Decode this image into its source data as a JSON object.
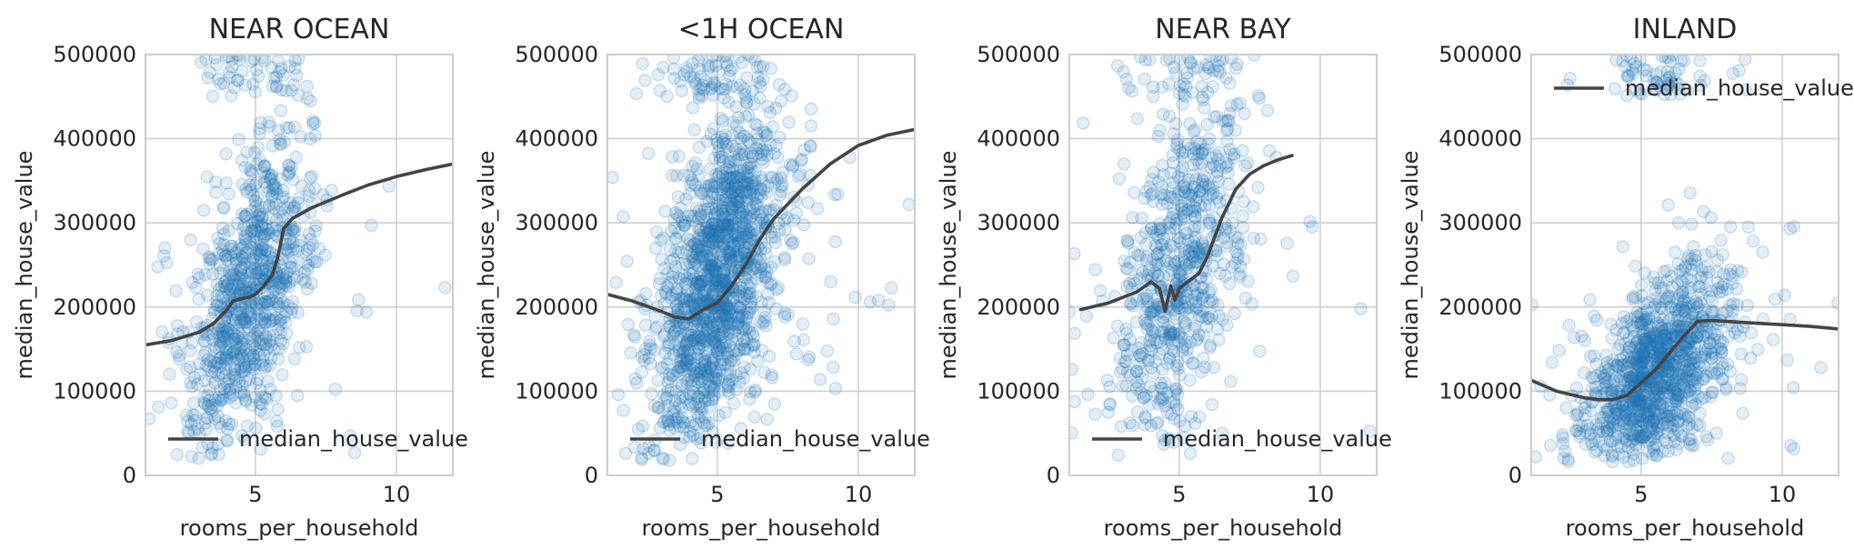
{
  "chart_data": [
    {
      "type": "scatter",
      "title": "NEAR OCEAN",
      "xlabel": "rooms_per_household",
      "ylabel": "median_house_value",
      "xlim": [
        1.1,
        12.0
      ],
      "ylim": [
        0,
        500000
      ],
      "xticks": [
        5,
        10
      ],
      "yticks": [
        0,
        100000,
        200000,
        300000,
        400000,
        500000
      ],
      "xtick_labels": [
        "5",
        "10"
      ],
      "ytick_labels": [
        "0",
        "100000",
        "200000",
        "300000",
        "400000",
        "500000"
      ],
      "grid": true,
      "legend": {
        "position": "lower left",
        "entries": [
          "median_house_value"
        ]
      },
      "scatter_summary": {
        "x_center": 4.8,
        "x_spread": 1.1,
        "y_center": 215000,
        "y_spread": 95000,
        "point_count": 900
      },
      "series": [
        {
          "name": "median_house_value",
          "kind": "line",
          "x": [
            1.1,
            2.0,
            3.0,
            3.5,
            4.0,
            4.2,
            4.5,
            4.8,
            5.0,
            5.3,
            5.6,
            5.8,
            6.0,
            6.3,
            7.0,
            8.0,
            9.0,
            10.0,
            11.0,
            12.0
          ],
          "y": [
            155000,
            160000,
            170000,
            180000,
            197000,
            207000,
            210000,
            212000,
            215000,
            225000,
            238000,
            260000,
            293000,
            305000,
            318000,
            332000,
            345000,
            355000,
            363000,
            370000
          ]
        }
      ]
    },
    {
      "type": "scatter",
      "title": "<1H OCEAN",
      "xlabel": "rooms_per_household",
      "ylabel": "median_house_value",
      "xlim": [
        1.1,
        12.0
      ],
      "ylim": [
        0,
        500000
      ],
      "xticks": [
        5,
        10
      ],
      "yticks": [
        0,
        100000,
        200000,
        300000,
        400000,
        500000
      ],
      "xtick_labels": [
        "5",
        "10"
      ],
      "ytick_labels": [
        "0",
        "100000",
        "200000",
        "300000",
        "400000",
        "500000"
      ],
      "grid": true,
      "legend": {
        "position": "lower left",
        "entries": [
          "median_house_value"
        ]
      },
      "scatter_summary": {
        "x_center": 5.0,
        "x_spread": 1.2,
        "y_center": 230000,
        "y_spread": 105000,
        "point_count": 1500
      },
      "series": [
        {
          "name": "median_house_value",
          "kind": "line",
          "x": [
            1.1,
            2.0,
            3.0,
            3.5,
            4.0,
            4.5,
            5.0,
            5.5,
            6.0,
            6.5,
            7.0,
            8.0,
            9.0,
            10.0,
            11.0,
            12.0
          ],
          "y": [
            215000,
            207000,
            195000,
            188000,
            186000,
            197000,
            205000,
            225000,
            250000,
            280000,
            305000,
            340000,
            370000,
            392000,
            404000,
            411000
          ]
        }
      ]
    },
    {
      "type": "scatter",
      "title": "NEAR BAY",
      "xlabel": "rooms_per_household",
      "ylabel": "median_house_value",
      "xlim": [
        1.1,
        12.0
      ],
      "ylim": [
        0,
        500000
      ],
      "xticks": [
        5,
        10
      ],
      "yticks": [
        0,
        100000,
        200000,
        300000,
        400000,
        500000
      ],
      "xtick_labels": [
        "5",
        "10"
      ],
      "ytick_labels": [
        "0",
        "100000",
        "200000",
        "300000",
        "400000",
        "500000"
      ],
      "grid": true,
      "legend": {
        "position": "lower left",
        "entries": [
          "median_house_value"
        ]
      },
      "scatter_summary": {
        "x_center": 5.1,
        "x_spread": 1.2,
        "y_center": 250000,
        "y_spread": 110000,
        "point_count": 750
      },
      "series": [
        {
          "name": "median_house_value",
          "kind": "line",
          "x": [
            1.5,
            2.5,
            3.5,
            4.0,
            4.3,
            4.5,
            4.7,
            4.85,
            5.0,
            5.3,
            5.7,
            6.0,
            6.5,
            7.0,
            7.5,
            8.0,
            8.5,
            9.0
          ],
          "y": [
            197000,
            205000,
            218000,
            230000,
            222000,
            195000,
            225000,
            208000,
            222000,
            230000,
            240000,
            260000,
            305000,
            340000,
            358000,
            368000,
            375000,
            380000
          ]
        }
      ]
    },
    {
      "type": "scatter",
      "title": "INLAND",
      "xlabel": "rooms_per_household",
      "ylabel": "median_house_value",
      "xlim": [
        1.1,
        12.0
      ],
      "ylim": [
        0,
        500000
      ],
      "xticks": [
        5,
        10
      ],
      "yticks": [
        0,
        100000,
        200000,
        300000,
        400000,
        500000
      ],
      "xtick_labels": [
        "5",
        "10"
      ],
      "ytick_labels": [
        "0",
        "100000",
        "200000",
        "300000",
        "400000",
        "500000"
      ],
      "grid": true,
      "legend": {
        "position": "upper left",
        "entries": [
          "median_house_value"
        ]
      },
      "scatter_summary": {
        "x_center": 5.6,
        "x_spread": 1.3,
        "y_center": 125000,
        "y_spread": 65000,
        "point_count": 1200
      },
      "series": [
        {
          "name": "median_house_value",
          "kind": "line",
          "x": [
            1.1,
            2.0,
            3.0,
            3.5,
            4.0,
            4.5,
            5.0,
            5.5,
            6.0,
            6.5,
            7.0,
            7.5,
            8.0,
            9.0,
            10.0,
            11.0,
            12.0
          ],
          "y": [
            113000,
            100000,
            92000,
            90000,
            90000,
            95000,
            110000,
            125000,
            145000,
            165000,
            183000,
            184000,
            183000,
            181000,
            179000,
            177000,
            174000
          ]
        }
      ]
    }
  ]
}
